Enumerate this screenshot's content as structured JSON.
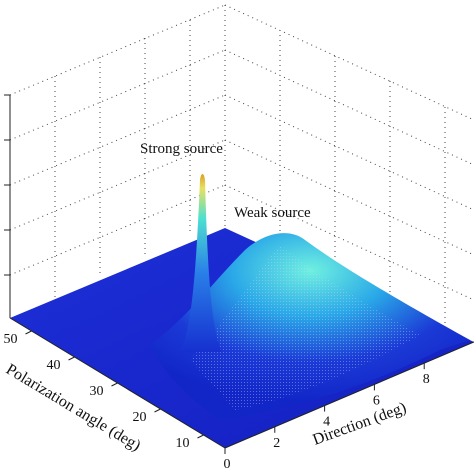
{
  "chart_data": {
    "type": "surface3d",
    "title": "",
    "xlabel": "Direction (deg)",
    "ylabel": "Polarization angle (deg)",
    "zlabel": "",
    "xticks": [
      0,
      2,
      4,
      6,
      8
    ],
    "yticks": [
      10,
      20,
      30,
      40,
      50
    ],
    "xlim": [
      0,
      10
    ],
    "ylim": [
      5,
      55
    ],
    "grid": true,
    "colormap": "jet",
    "peaks": [
      {
        "label": "Strong source",
        "x": 1.0,
        "y": 48,
        "height": 1.0,
        "width": "narrow"
      },
      {
        "label": "Weak source",
        "x": 5.0,
        "y": 38,
        "height": 0.35,
        "width": "broad"
      }
    ]
  }
}
